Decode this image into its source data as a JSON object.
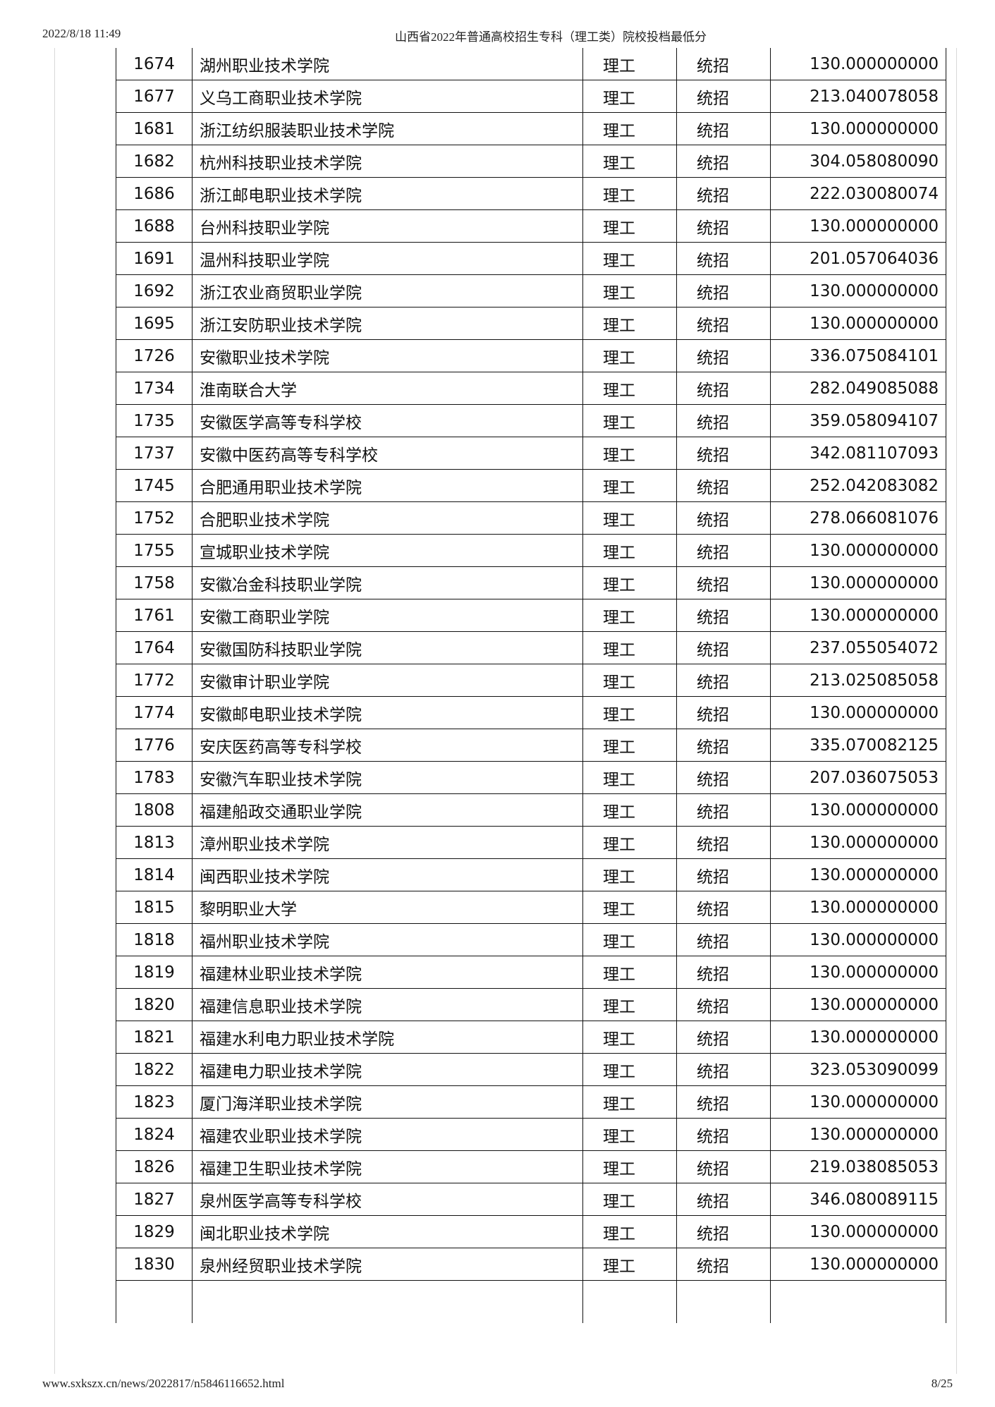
{
  "header": {
    "datetime": "2022/8/18 11:49",
    "title": "山西省2022年普通高校招生专科（理工类）院校投档最低分"
  },
  "footer": {
    "url": "www.sxkszx.cn/news/2022817/n5846116652.html",
    "page": "8/25"
  },
  "rows": [
    [
      "1674",
      "湖州职业技术学院",
      "理工",
      "统招",
      "130.000000000"
    ],
    [
      "1677",
      "义乌工商职业技术学院",
      "理工",
      "统招",
      "213.040078058"
    ],
    [
      "1681",
      "浙江纺织服装职业技术学院",
      "理工",
      "统招",
      "130.000000000"
    ],
    [
      "1682",
      "杭州科技职业技术学院",
      "理工",
      "统招",
      "304.058080090"
    ],
    [
      "1686",
      "浙江邮电职业技术学院",
      "理工",
      "统招",
      "222.030080074"
    ],
    [
      "1688",
      "台州科技职业学院",
      "理工",
      "统招",
      "130.000000000"
    ],
    [
      "1691",
      "温州科技职业学院",
      "理工",
      "统招",
      "201.057064036"
    ],
    [
      "1692",
      "浙江农业商贸职业学院",
      "理工",
      "统招",
      "130.000000000"
    ],
    [
      "1695",
      "浙江安防职业技术学院",
      "理工",
      "统招",
      "130.000000000"
    ],
    [
      "1726",
      "安徽职业技术学院",
      "理工",
      "统招",
      "336.075084101"
    ],
    [
      "1734",
      "淮南联合大学",
      "理工",
      "统招",
      "282.049085088"
    ],
    [
      "1735",
      "安徽医学高等专科学校",
      "理工",
      "统招",
      "359.058094107"
    ],
    [
      "1737",
      "安徽中医药高等专科学校",
      "理工",
      "统招",
      "342.081107093"
    ],
    [
      "1745",
      "合肥通用职业技术学院",
      "理工",
      "统招",
      "252.042083082"
    ],
    [
      "1752",
      "合肥职业技术学院",
      "理工",
      "统招",
      "278.066081076"
    ],
    [
      "1755",
      "宣城职业技术学院",
      "理工",
      "统招",
      "130.000000000"
    ],
    [
      "1758",
      "安徽冶金科技职业学院",
      "理工",
      "统招",
      "130.000000000"
    ],
    [
      "1761",
      "安徽工商职业学院",
      "理工",
      "统招",
      "130.000000000"
    ],
    [
      "1764",
      "安徽国防科技职业学院",
      "理工",
      "统招",
      "237.055054072"
    ],
    [
      "1772",
      "安徽审计职业学院",
      "理工",
      "统招",
      "213.025085058"
    ],
    [
      "1774",
      "安徽邮电职业技术学院",
      "理工",
      "统招",
      "130.000000000"
    ],
    [
      "1776",
      "安庆医药高等专科学校",
      "理工",
      "统招",
      "335.070082125"
    ],
    [
      "1783",
      "安徽汽车职业技术学院",
      "理工",
      "统招",
      "207.036075053"
    ],
    [
      "1808",
      "福建船政交通职业学院",
      "理工",
      "统招",
      "130.000000000"
    ],
    [
      "1813",
      "漳州职业技术学院",
      "理工",
      "统招",
      "130.000000000"
    ],
    [
      "1814",
      "闽西职业技术学院",
      "理工",
      "统招",
      "130.000000000"
    ],
    [
      "1815",
      "黎明职业大学",
      "理工",
      "统招",
      "130.000000000"
    ],
    [
      "1818",
      "福州职业技术学院",
      "理工",
      "统招",
      "130.000000000"
    ],
    [
      "1819",
      "福建林业职业技术学院",
      "理工",
      "统招",
      "130.000000000"
    ],
    [
      "1820",
      "福建信息职业技术学院",
      "理工",
      "统招",
      "130.000000000"
    ],
    [
      "1821",
      "福建水利电力职业技术学院",
      "理工",
      "统招",
      "130.000000000"
    ],
    [
      "1822",
      "福建电力职业技术学院",
      "理工",
      "统招",
      "323.053090099"
    ],
    [
      "1823",
      "厦门海洋职业技术学院",
      "理工",
      "统招",
      "130.000000000"
    ],
    [
      "1824",
      "福建农业职业技术学院",
      "理工",
      "统招",
      "130.000000000"
    ],
    [
      "1826",
      "福建卫生职业技术学院",
      "理工",
      "统招",
      "219.038085053"
    ],
    [
      "1827",
      "泉州医学高等专科学校",
      "理工",
      "统招",
      "346.080089115"
    ],
    [
      "1829",
      "闽北职业技术学院",
      "理工",
      "统招",
      "130.000000000"
    ],
    [
      "1830",
      "泉州经贸职业技术学院",
      "理工",
      "统招",
      "130.000000000"
    ]
  ]
}
